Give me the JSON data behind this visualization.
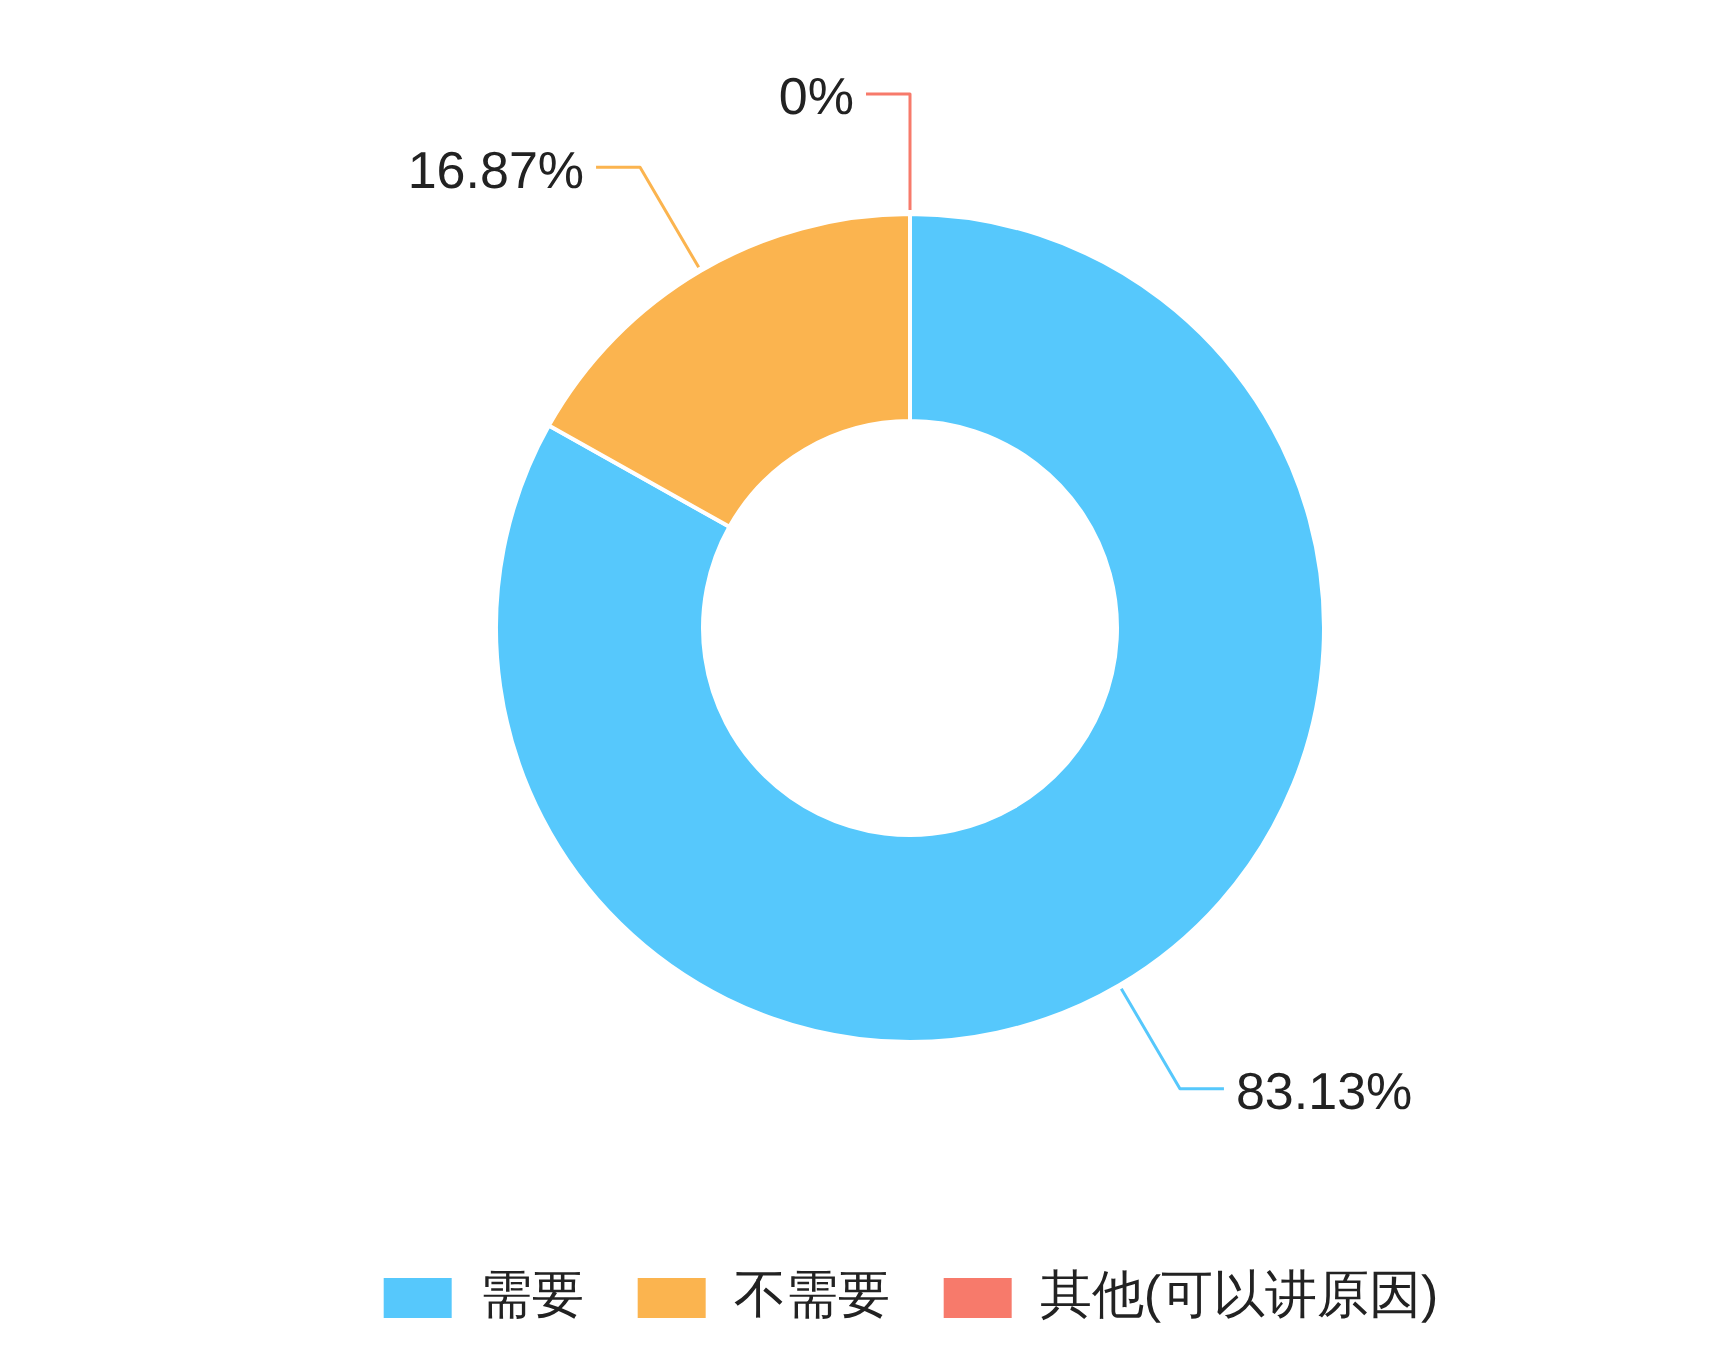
{
  "chart_data": {
    "type": "donut",
    "categories": [
      "需要",
      "不需要",
      "其他(可以讲原因)"
    ],
    "values": [
      83.13,
      16.87,
      0
    ],
    "colors": [
      "#56c8fc",
      "#fbb44f",
      "#f77a6b"
    ],
    "value_labels": [
      "83.13%",
      "16.87%",
      "0%"
    ],
    "legend": "bottom"
  }
}
